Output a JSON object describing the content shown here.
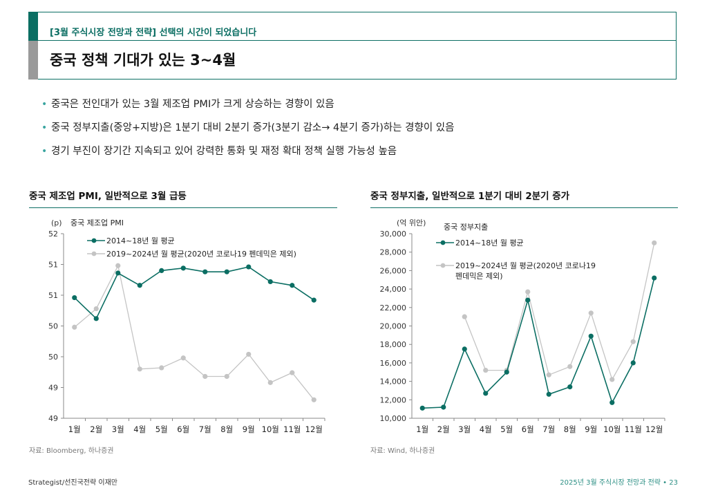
{
  "header": {
    "subtitle": "[3월 주식시장 전망과 전략] 선택의 시간이 되었습니다",
    "title": "중국 정책 기대가 있는 3~4월"
  },
  "bullets": [
    "중국은 전인대가 있는 3월 제조업 PMI가 크게 상승하는 경향이 있음",
    "중국 정부지출(중앙+지방)은 1분기 대비 2분기 증가(3분기 감소→ 4분기 증가)하는 경향이 있음",
    "경기 부진이 장기간 지속되고 있어 강력한 통화 및 재정 확대 정책 실행 가능성 높음"
  ],
  "colors": {
    "accent": "#0b6e63",
    "series1": "#0b6e63",
    "series2": "#c4c4c4"
  },
  "chart_data": [
    {
      "type": "line",
      "title": "중국 제조업 PMI, 일반적으로 3월 급등",
      "unit": "(p)",
      "inner_title": "중국 제조업 PMI",
      "categories": [
        "1월",
        "2월",
        "3월",
        "4월",
        "5월",
        "6월",
        "7월",
        "8월",
        "9월",
        "10월",
        "11월",
        "12월"
      ],
      "ylim": [
        49,
        52
      ],
      "yticks": [
        "52",
        "51",
        "51",
        "50",
        "50",
        "49",
        "49"
      ],
      "series": [
        {
          "name": "2014~18년 월 평균",
          "values": [
            50.96,
            50.62,
            51.36,
            51.16,
            51.4,
            51.44,
            51.38,
            51.38,
            51.46,
            51.22,
            51.16,
            50.92
          ]
        },
        {
          "name": "2019~2024년 월 평균(2020년 코로나19 펜데믹은 제외)",
          "values": [
            50.48,
            50.78,
            51.48,
            49.8,
            49.82,
            49.98,
            49.68,
            49.68,
            50.04,
            49.58,
            49.74,
            49.3
          ]
        }
      ],
      "source": "자료: Bloomberg, 하나증권"
    },
    {
      "type": "line",
      "title": "중국 정부지출, 일반적으로 1분기 대비 2분기 증가",
      "unit": "(억 위안)",
      "inner_title": "중국 정부지출",
      "categories": [
        "1월",
        "2월",
        "3월",
        "4월",
        "5월",
        "6월",
        "7월",
        "8월",
        "9월",
        "10월",
        "11월",
        "12월"
      ],
      "ylim": [
        10000,
        30000
      ],
      "yticks": [
        "30,000",
        "28,000",
        "26,000",
        "24,000",
        "22,000",
        "20,000",
        "18,000",
        "16,000",
        "14,000",
        "12,000",
        "10,000"
      ],
      "series": [
        {
          "name": "2014~18년 월 평균",
          "values": [
            11100,
            11200,
            17500,
            12700,
            15000,
            22800,
            12600,
            13400,
            18900,
            11700,
            16000,
            25200
          ]
        },
        {
          "name": "2019~2024년 월 평균(2020년 코로나19 펜데믹은 제외)",
          "legend_lines": [
            "2019~2024년 월 평균(2020년 코로나19",
            "펜데믹은 제외)"
          ],
          "values": [
            null,
            null,
            21000,
            15200,
            15200,
            23700,
            14700,
            15600,
            21400,
            14200,
            18300,
            29000
          ]
        }
      ],
      "source": "자료: Wind, 하나증권"
    }
  ],
  "footer": {
    "left": "Strategist/선진국전략 이재만",
    "right": "2025년 3월 주식시장 전망과 전략 • 23"
  }
}
